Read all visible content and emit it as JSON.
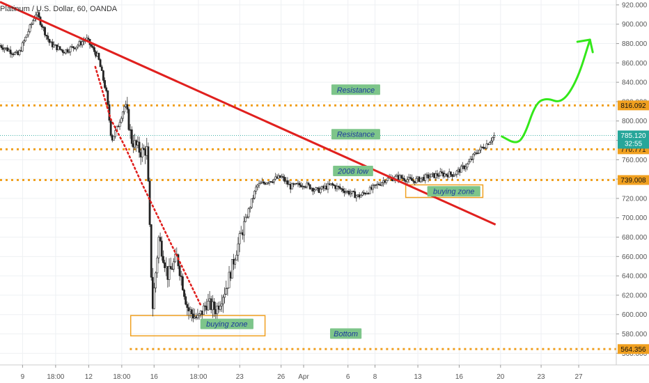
{
  "chart_data": {
    "type": "candlestick",
    "title": "Platinum / U.S. Dollar, 60, OANDA",
    "ylim": [
      548,
      925
    ],
    "y_ticks": [
      "920.000",
      "900.000",
      "880.000",
      "860.000",
      "840.000",
      "820.000",
      "800.000",
      "780.000",
      "760.000",
      "740.000",
      "720.000",
      "700.000",
      "680.000",
      "660.000",
      "640.000",
      "620.000",
      "600.000",
      "580.000",
      "560.000"
    ],
    "x_ticks": [
      "9",
      "18:00",
      "12",
      "18:00",
      "16",
      "18:00",
      "23",
      "26",
      "Apr",
      "6",
      "8",
      "13",
      "16",
      "20",
      "23",
      "27"
    ],
    "price_path": [
      {
        "t": 0.0,
        "p": 878
      },
      {
        "t": 2.0,
        "p": 868
      },
      {
        "t": 4.0,
        "p": 912
      },
      {
        "t": 5.5,
        "p": 880
      },
      {
        "t": 7.0,
        "p": 872
      },
      {
        "t": 8.5,
        "p": 878
      },
      {
        "t": 9.5,
        "p": 885
      },
      {
        "t": 10.8,
        "p": 866
      },
      {
        "t": 11.7,
        "p": 830
      },
      {
        "t": 12.3,
        "p": 780
      },
      {
        "t": 13.0,
        "p": 795
      },
      {
        "t": 13.8,
        "p": 818
      },
      {
        "t": 14.5,
        "p": 780
      },
      {
        "t": 15.5,
        "p": 768
      },
      {
        "t": 16.2,
        "p": 770
      },
      {
        "t": 16.8,
        "p": 605
      },
      {
        "t": 17.5,
        "p": 680
      },
      {
        "t": 18.5,
        "p": 640
      },
      {
        "t": 19.5,
        "p": 660
      },
      {
        "t": 20.7,
        "p": 605
      },
      {
        "t": 21.8,
        "p": 595
      },
      {
        "t": 22.8,
        "p": 612
      },
      {
        "t": 23.8,
        "p": 605
      },
      {
        "t": 25.0,
        "p": 630
      },
      {
        "t": 26.0,
        "p": 665
      },
      {
        "t": 27.3,
        "p": 705
      },
      {
        "t": 28.3,
        "p": 733
      },
      {
        "t": 29.5,
        "p": 738
      },
      {
        "t": 31.0,
        "p": 742
      },
      {
        "t": 32.0,
        "p": 732
      },
      {
        "t": 33.5,
        "p": 735
      },
      {
        "t": 35.0,
        "p": 728
      },
      {
        "t": 36.5,
        "p": 734
      },
      {
        "t": 38.0,
        "p": 728
      },
      {
        "t": 39.5,
        "p": 722
      },
      {
        "t": 41.0,
        "p": 730
      },
      {
        "t": 42.5,
        "p": 740
      },
      {
        "t": 44.0,
        "p": 742
      },
      {
        "t": 45.5,
        "p": 738
      },
      {
        "t": 47.0,
        "p": 742
      },
      {
        "t": 48.5,
        "p": 745
      },
      {
        "t": 50.0,
        "p": 745
      },
      {
        "t": 51.5,
        "p": 755
      },
      {
        "t": 52.5,
        "p": 768
      },
      {
        "t": 53.5,
        "p": 775
      },
      {
        "t": 54.5,
        "p": 785
      }
    ],
    "levels": [
      {
        "price": 816.092,
        "label": "816.092",
        "color": "#f0a020"
      },
      {
        "price": 770.771,
        "label": "770.771",
        "color": "#f0a020"
      },
      {
        "price": 739.008,
        "label": "739.008",
        "color": "#f0a020"
      },
      {
        "price": 564.356,
        "label": "564.356",
        "color": "#f0a020"
      }
    ],
    "last_price": {
      "price": 785.12,
      "label": "785.120",
      "countdown": "32:55",
      "color": "#26a69a"
    },
    "annotations": [
      {
        "text": "Resistance",
        "t": 39.2,
        "p": 832
      },
      {
        "text": "Resistance",
        "t": 39.2,
        "p": 786
      },
      {
        "text": "2008 low",
        "t": 38.9,
        "p": 748
      },
      {
        "text": "buying zone",
        "t": 50.0,
        "p": 727
      },
      {
        "text": "buying zone",
        "t": 25.0,
        "p": 590
      },
      {
        "text": "Bottom",
        "t": 38.1,
        "p": 580
      }
    ],
    "buying_zones": [
      {
        "t0": 14.4,
        "t1": 29.2,
        "p0": 578,
        "p1": 599
      },
      {
        "t0": 44.7,
        "t1": 53.2,
        "p0": 721,
        "p1": 734
      }
    ],
    "trendline": {
      "t0": 0,
      "p0": 923,
      "t1": 54.6,
      "p1": 693,
      "color": "#e0201e"
    },
    "dotted_trend": {
      "points": [
        {
          "t": 10.5,
          "p": 856
        },
        {
          "t": 12.2,
          "p": 802
        },
        {
          "t": 13.8,
          "p": 773
        },
        {
          "t": 15.5,
          "p": 738
        },
        {
          "t": 22.2,
          "p": 608
        }
      ],
      "color": "#e0201e"
    },
    "projection": {
      "points": [
        {
          "t": 55.3,
          "p": 784
        },
        {
          "t": 56.9,
          "p": 776
        },
        {
          "t": 57.8,
          "p": 785
        },
        {
          "t": 59.0,
          "p": 818
        },
        {
          "t": 60.2,
          "p": 824
        },
        {
          "t": 61.9,
          "p": 818
        },
        {
          "t": 63.6,
          "p": 842
        },
        {
          "t": 65.0,
          "p": 884
        }
      ],
      "color": "#33e81a"
    },
    "grid": true
  },
  "colors": {
    "up": "#222222",
    "down": "#444444",
    "note_fill": "#7dc58a",
    "zone_border": "#f0a020",
    "axis_bg": "#ffffff"
  }
}
